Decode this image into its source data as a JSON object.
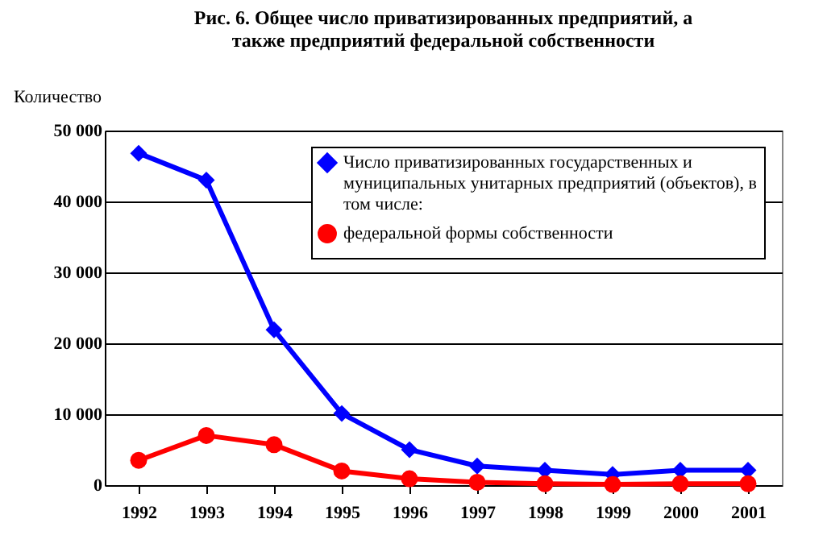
{
  "chart_data": {
    "type": "line",
    "title": "Рис. 6. Общее число приватизированных предприятий, а также предприятий федеральной собственности",
    "ylabel": "Количество",
    "categories": [
      "1992",
      "1993",
      "1994",
      "1995",
      "1996",
      "1997",
      "1998",
      "1999",
      "2000",
      "2001"
    ],
    "series": [
      {
        "name": "Число приватизированных государственных и муниципальных унитарных предприятий (объектов), в том числе:",
        "color": "#0000ff",
        "marker": "diamond",
        "values": [
          46800,
          43000,
          21900,
          10100,
          5000,
          2700,
          2100,
          1500,
          2100,
          2100
        ]
      },
      {
        "name": "  федеральной формы собственности",
        "color": "#ff0000",
        "marker": "circle",
        "values": [
          3500,
          7000,
          5700,
          2000,
          900,
          400,
          200,
          100,
          200,
          200
        ]
      }
    ],
    "ylim": [
      0,
      50000
    ],
    "yticks": [
      {
        "value": 0,
        "label": "0"
      },
      {
        "value": 10000,
        "label": "10 000"
      },
      {
        "value": 20000,
        "label": "20 000"
      },
      {
        "value": 30000,
        "label": "30 000"
      },
      {
        "value": 40000,
        "label": "40 000"
      },
      {
        "value": 50000,
        "label": "50 000"
      }
    ],
    "grid": "y",
    "legend": "top right",
    "line_style": "solid"
  }
}
